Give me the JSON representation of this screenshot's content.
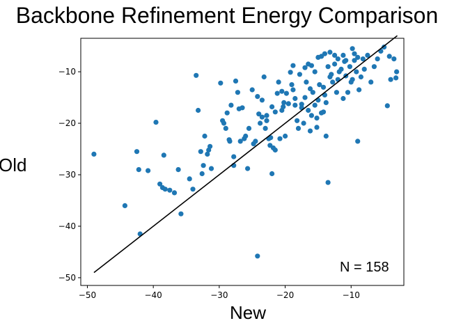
{
  "chart_data": {
    "type": "scatter",
    "title": "Backbone Refinement Energy Comparison",
    "xlabel": "New",
    "ylabel": "Old",
    "xlim": [
      -51,
      -2
    ],
    "ylim": [
      -51.5,
      -3.5
    ],
    "xticks": [
      -50,
      -40,
      -30,
      -20,
      -10
    ],
    "yticks": [
      -10,
      -20,
      -30,
      -40,
      -50
    ],
    "grid": false,
    "point_color": "#1f77b4",
    "line_color": "#000000",
    "annotation": "N = 158",
    "reference_line": {
      "from": [
        -49,
        -49
      ],
      "to": [
        -3,
        -3
      ]
    },
    "points": [
      [
        -49,
        -26
      ],
      [
        -44.3,
        -36
      ],
      [
        -42.5,
        -25.5
      ],
      [
        -42.2,
        -29
      ],
      [
        -42,
        -41.5
      ],
      [
        -40.8,
        -29.2
      ],
      [
        -39.6,
        -19.8
      ],
      [
        -39,
        -31.8
      ],
      [
        -38.6,
        -32.5
      ],
      [
        -38.4,
        -26.2
      ],
      [
        -38.2,
        -32.8
      ],
      [
        -37.5,
        -33
      ],
      [
        -36.8,
        -33.5
      ],
      [
        -36.2,
        -29
      ],
      [
        -35.8,
        -37.6
      ],
      [
        -34.5,
        -30.8
      ],
      [
        -34,
        -32.8
      ],
      [
        -33.5,
        -10.7
      ],
      [
        -33.2,
        -17.5
      ],
      [
        -32.8,
        -25.5
      ],
      [
        -32.6,
        -29.8
      ],
      [
        -32.4,
        -28.2
      ],
      [
        -32.2,
        -22.5
      ],
      [
        -31.8,
        -26
      ],
      [
        -31.6,
        -25.2
      ],
      [
        -31.4,
        -24.5
      ],
      [
        -31.2,
        -28.8
      ],
      [
        -29.8,
        -12.2
      ],
      [
        -29.5,
        -19.5
      ],
      [
        -29.3,
        -20
      ],
      [
        -29,
        -21
      ],
      [
        -28.8,
        -18
      ],
      [
        -28.5,
        -23.2
      ],
      [
        -28.2,
        -16.5
      ],
      [
        -27.8,
        -26.5
      ],
      [
        -27.5,
        -11.8
      ],
      [
        -27.2,
        -14
      ],
      [
        -27,
        -17.2
      ],
      [
        -26.8,
        -23.5
      ],
      [
        -26.5,
        -17
      ],
      [
        -26.2,
        -23
      ],
      [
        -25.7,
        -28.8
      ],
      [
        -25,
        -13.5
      ],
      [
        -24.8,
        -24
      ],
      [
        -24.5,
        -23.5
      ],
      [
        -24.2,
        -14.8
      ],
      [
        -24,
        -18.2
      ],
      [
        -23.8,
        -20
      ],
      [
        -23.5,
        -15.5
      ],
      [
        -23.2,
        -11
      ],
      [
        -23,
        -21
      ],
      [
        -22.8,
        -19.5
      ],
      [
        -22.5,
        -23
      ],
      [
        -22.3,
        -24.3
      ],
      [
        -22.2,
        -22.8
      ],
      [
        -22,
        -29.8
      ],
      [
        -21.8,
        -24.8
      ],
      [
        -21.5,
        -25.2
      ],
      [
        -21,
        -12
      ],
      [
        -20.8,
        -23
      ],
      [
        -20.5,
        -17.5
      ],
      [
        -20.3,
        -16.8
      ],
      [
        -20,
        -22.5
      ],
      [
        -24.2,
        -45.8
      ],
      [
        -19.5,
        -16.2
      ],
      [
        -19.2,
        -10.1
      ],
      [
        -18.8,
        -13.5
      ],
      [
        -18.5,
        -16.5
      ],
      [
        -18.2,
        -19.5
      ],
      [
        -18,
        -21
      ],
      [
        -17.5,
        -16.3
      ],
      [
        -17.2,
        -20
      ],
      [
        -17,
        -15
      ],
      [
        -16.8,
        -12
      ],
      [
        -16.5,
        -17.5
      ],
      [
        -16.2,
        -13.3
      ],
      [
        -16,
        -18.5
      ],
      [
        -15.8,
        -14
      ],
      [
        -15.5,
        -16.5
      ],
      [
        -15.2,
        -20.8
      ],
      [
        -15,
        -15.5
      ],
      [
        -14.8,
        -12.5
      ],
      [
        -14.5,
        -18
      ],
      [
        -14.2,
        -13
      ],
      [
        -14,
        -14.5
      ],
      [
        -13.8,
        -22.5
      ],
      [
        -13.5,
        -9
      ],
      [
        -13.2,
        -11
      ],
      [
        -13,
        -10.5
      ],
      [
        -12.8,
        -12
      ],
      [
        -12.5,
        -8.5
      ],
      [
        -12.2,
        -14
      ],
      [
        -12,
        -11.5
      ],
      [
        -11.8,
        -10
      ],
      [
        -11.5,
        -9.5
      ],
      [
        -11.2,
        -15.2
      ],
      [
        -11,
        -8
      ],
      [
        -10.8,
        -10.8
      ],
      [
        -10.5,
        -14
      ],
      [
        -10.2,
        -9
      ],
      [
        -10,
        -12
      ],
      [
        -9.8,
        -11.5
      ],
      [
        -9.5,
        -7.8
      ],
      [
        -9.2,
        -10
      ],
      [
        -9,
        -23.5
      ],
      [
        -8.8,
        -13.5
      ],
      [
        -8.5,
        -11
      ],
      [
        -8.2,
        -7.5
      ],
      [
        -8,
        -9.5
      ],
      [
        -7.5,
        -6.8
      ],
      [
        -7,
        -12
      ],
      [
        -6.5,
        -9
      ],
      [
        -6,
        -7.5
      ],
      [
        -5.5,
        -6
      ],
      [
        -5,
        -5.2
      ],
      [
        -4.5,
        -16.6
      ],
      [
        -4.2,
        -7
      ],
      [
        -4,
        -11.5
      ],
      [
        -3.5,
        -7.5
      ],
      [
        -3.2,
        -11.2
      ],
      [
        -3.1,
        -10
      ],
      [
        -13.5,
        -31.5
      ],
      [
        -21.5,
        -17.8
      ],
      [
        -20.2,
        -16
      ],
      [
        -19,
        -12.5
      ],
      [
        -18.8,
        -8.8
      ],
      [
        -17.8,
        -10.5
      ],
      [
        -17,
        -9.2
      ],
      [
        -16.5,
        -8.5
      ],
      [
        -16,
        -8.8
      ],
      [
        -15.5,
        -10
      ],
      [
        -15,
        -7.2
      ],
      [
        -14.5,
        -7
      ],
      [
        -14,
        -6.5
      ],
      [
        -13.2,
        -6.2
      ],
      [
        -12.5,
        -6.8
      ],
      [
        -12,
        -7.5
      ],
      [
        -11.2,
        -6.8
      ],
      [
        -10.8,
        -7.8
      ],
      [
        -9.8,
        -5.5
      ],
      [
        -9.5,
        -6.5
      ],
      [
        -9,
        -7.2
      ],
      [
        -13.8,
        -16
      ],
      [
        -14.2,
        -17.8
      ],
      [
        -15.2,
        -19
      ],
      [
        -16.2,
        -21.5
      ],
      [
        -17.5,
        -17
      ],
      [
        -18.5,
        -15.2
      ],
      [
        -19.8,
        -14.2
      ],
      [
        -20.5,
        -13.8
      ],
      [
        -21.2,
        -14.2
      ],
      [
        -22,
        -16.8
      ],
      [
        -22.8,
        -18.5
      ],
      [
        -23.5,
        -18.8
      ],
      [
        -25.5,
        -21
      ],
      [
        -26,
        -22.5
      ],
      [
        -27.8,
        -28.2
      ],
      [
        -28.4,
        -23.5
      ]
    ]
  }
}
